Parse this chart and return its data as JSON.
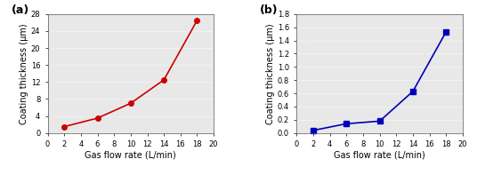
{
  "chart_a": {
    "x": [
      2,
      6,
      10,
      14,
      18
    ],
    "y": [
      1.5,
      3.5,
      7.0,
      12.5,
      26.5
    ],
    "color": "#cc0000",
    "marker": "o",
    "markersize": 4,
    "linewidth": 1.2,
    "xlabel": "Gas flow rate (L/min)",
    "ylabel": "Coating thickness (μm)",
    "xlim": [
      0,
      20
    ],
    "ylim": [
      0,
      28
    ],
    "yticks": [
      0,
      4,
      8,
      12,
      16,
      20,
      24,
      28
    ],
    "xticks": [
      0,
      2,
      4,
      6,
      8,
      10,
      12,
      14,
      16,
      18,
      20
    ],
    "label": "(a)"
  },
  "chart_b": {
    "x": [
      2,
      6,
      10,
      14,
      18
    ],
    "y": [
      0.04,
      0.14,
      0.18,
      0.63,
      1.53
    ],
    "color": "#0000bb",
    "marker": "s",
    "markersize": 4,
    "linewidth": 1.2,
    "xlabel": "Gas flow rate (L/min)",
    "ylabel": "Coating thickness (μm)",
    "xlim": [
      0,
      20
    ],
    "ylim": [
      0.0,
      1.8
    ],
    "yticks": [
      0.0,
      0.2,
      0.4,
      0.6,
      0.8,
      1.0,
      1.2,
      1.4,
      1.6,
      1.8
    ],
    "xticks": [
      0,
      2,
      4,
      6,
      8,
      10,
      12,
      14,
      16,
      18,
      20
    ],
    "label": "(b)"
  },
  "background_color": "#e8e8e8",
  "grid_color": "#ffffff",
  "grid_linestyle": ":",
  "grid_linewidth": 0.8,
  "label_fontsize": 7,
  "tick_fontsize": 6,
  "panel_label_fontsize": 9,
  "fig_facecolor": "#ffffff"
}
